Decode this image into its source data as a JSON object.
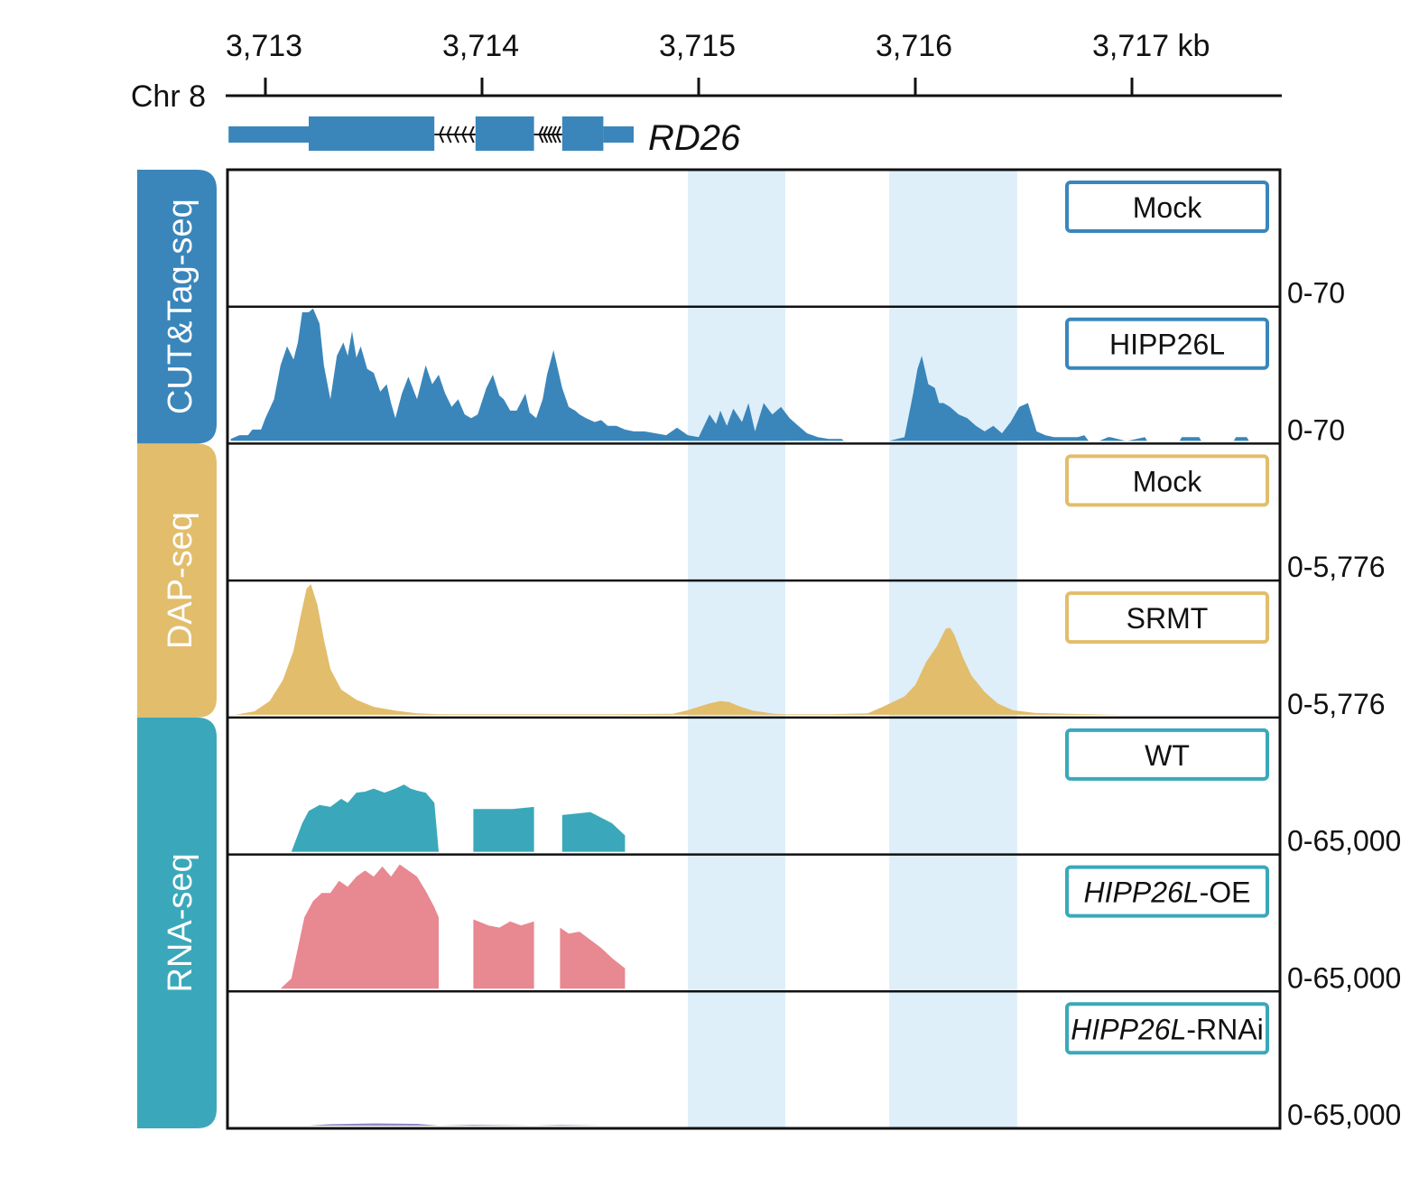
{
  "chart_data": {
    "type": "area",
    "subtype": "genome-browser-tracks",
    "chromosome": "Chr 8",
    "x_unit": "kb",
    "xlim": [
      3712.83,
      3717.7
    ],
    "xticks": [
      3713,
      3714,
      3715,
      3716,
      3717
    ],
    "xtick_labels": [
      "3,713",
      "3,714",
      "3,715",
      "3,716",
      "3,717 kb"
    ],
    "gene": {
      "name": "RD26",
      "strand": "-",
      "start": 3712.83,
      "end": 3714.7,
      "exons": [
        [
          3713.2,
          3713.78
        ],
        [
          3713.97,
          3714.24
        ],
        [
          3714.37,
          3714.56
        ]
      ],
      "utr": [
        [
          3712.83,
          3713.2
        ],
        [
          3714.56,
          3714.7
        ]
      ],
      "introns": [
        [
          3713.78,
          3713.97
        ],
        [
          3714.24,
          3714.37
        ]
      ]
    },
    "highlight_regions": [
      [
        3714.95,
        3715.4
      ],
      [
        3715.88,
        3716.47
      ]
    ],
    "colors": {
      "cut_tag": "#3a86bb",
      "dap": "#e2bd6c",
      "rna": "#3aa8ba",
      "wt": "#3aa8ba",
      "oe": "#e88891",
      "rnai": "#8e87c7",
      "highlight": "#deeffa",
      "gene": "#3a86bb",
      "axis": "#111111"
    },
    "groups": [
      {
        "label": "CUT&Tag-seq",
        "color": "#3a86bb",
        "tracks": [
          0,
          1
        ]
      },
      {
        "label": "DAP-seq",
        "color": "#e2bd6c",
        "tracks": [
          2,
          3
        ]
      },
      {
        "label": "RNA-seq",
        "color": "#3aa8ba",
        "tracks": [
          4,
          5,
          6
        ]
      }
    ],
    "tracks": [
      {
        "label": "Mock",
        "italic_part": "",
        "range": "0-70",
        "ymax": 70,
        "color": "#3a86bb",
        "box_color": "#3a86bb",
        "x": [],
        "y": []
      },
      {
        "label": "HIPP26L",
        "italic_part": "",
        "range": "0-70",
        "ymax": 70,
        "color": "#3a86bb",
        "box_color": "#3a86bb",
        "x": [
          3712.84,
          3712.88,
          3712.92,
          3712.94,
          3712.98,
          3713.0,
          3713.04,
          3713.07,
          3713.1,
          3713.13,
          3713.15,
          3713.17,
          3713.2,
          3713.22,
          3713.25,
          3713.27,
          3713.3,
          3713.33,
          3713.36,
          3713.38,
          3713.4,
          3713.42,
          3713.44,
          3713.47,
          3713.5,
          3713.53,
          3713.56,
          3713.58,
          3713.6,
          3713.63,
          3713.66,
          3713.7,
          3713.74,
          3713.77,
          3713.8,
          3713.83,
          3713.86,
          3713.89,
          3713.92,
          3713.95,
          3713.98,
          3714.02,
          3714.05,
          3714.08,
          3714.1,
          3714.13,
          3714.16,
          3714.2,
          3714.22,
          3714.25,
          3714.28,
          3714.3,
          3714.33,
          3714.37,
          3714.4,
          3714.43,
          3714.45,
          3714.48,
          3714.52,
          3714.55,
          3714.58,
          3714.62,
          3714.66,
          3714.7,
          3714.75,
          3714.8,
          3714.85,
          3714.9,
          3714.95,
          3715.0,
          3715.05,
          3715.08,
          3715.1,
          3715.13,
          3715.16,
          3715.2,
          3715.23,
          3715.26,
          3715.3,
          3715.34,
          3715.38,
          3715.42,
          3715.46,
          3715.5,
          3715.55,
          3715.6,
          3715.66,
          3715.67,
          3715.88,
          3715.95,
          3715.99,
          3716.01,
          3716.03,
          3716.06,
          3716.09,
          3716.11,
          3716.13,
          3716.16,
          3716.2,
          3716.24,
          3716.28,
          3716.32,
          3716.36,
          3716.4,
          3716.44,
          3716.48,
          3716.52,
          3716.56,
          3716.6,
          3716.64,
          3716.68,
          3716.72,
          3716.75,
          3716.78,
          3716.8,
          3716.85,
          3716.89,
          3716.9,
          3716.97,
          3716.98,
          3717.06,
          3717.07,
          3717.22,
          3717.23,
          3717.31,
          3717.32,
          3717.47,
          3717.48,
          3717.53,
          3717.54,
          3717.7
        ],
        "y": [
          1,
          3,
          3,
          6,
          6,
          12,
          22,
          40,
          50,
          43,
          52,
          68,
          68,
          70,
          62,
          40,
          22,
          45,
          52,
          45,
          58,
          44,
          50,
          38,
          36,
          26,
          30,
          20,
          12,
          25,
          34,
          22,
          40,
          30,
          35,
          25,
          18,
          22,
          14,
          12,
          14,
          28,
          35,
          24,
          22,
          16,
          16,
          25,
          15,
          12,
          22,
          35,
          48,
          28,
          18,
          16,
          14,
          12,
          10,
          11,
          8,
          8,
          6,
          5,
          5,
          4,
          3,
          7,
          3,
          2,
          14,
          9,
          16,
          8,
          17,
          10,
          20,
          5,
          20,
          14,
          18,
          12,
          8,
          4,
          2,
          1,
          1,
          0,
          0,
          2,
          25,
          38,
          45,
          30,
          28,
          20,
          20,
          18,
          14,
          12,
          8,
          5,
          8,
          4,
          10,
          18,
          20,
          5,
          3,
          2,
          2,
          2,
          2,
          3,
          0,
          0,
          2,
          2,
          0,
          0,
          2,
          0,
          0,
          2,
          2,
          0,
          0,
          2,
          2,
          0,
          0
        ]
      },
      {
        "label": "Mock",
        "italic_part": "",
        "range": "0-5,776",
        "ymax": 5776,
        "color": "#e2bd6c",
        "box_color": "#e2bd6c",
        "x": [],
        "y": []
      },
      {
        "label": "SRMT",
        "italic_part": "",
        "range": "0-5,776",
        "ymax": 5776,
        "color": "#e2bd6c",
        "box_color": "#e2bd6c",
        "x": [
          3712.86,
          3712.95,
          3713.02,
          3713.08,
          3713.13,
          3713.16,
          3713.19,
          3713.21,
          3713.24,
          3713.27,
          3713.3,
          3713.35,
          3713.42,
          3713.5,
          3713.6,
          3713.7,
          3713.8,
          3714.0,
          3714.3,
          3714.6,
          3714.88,
          3714.95,
          3715.05,
          3715.1,
          3715.14,
          3715.18,
          3715.25,
          3715.35,
          3715.4,
          3715.6,
          3715.78,
          3715.85,
          3715.95,
          3716.0,
          3716.05,
          3716.1,
          3716.14,
          3716.16,
          3716.18,
          3716.22,
          3716.26,
          3716.32,
          3716.38,
          3716.45,
          3716.55,
          3716.7,
          3716.95
        ],
        "y": [
          0,
          150,
          600,
          1500,
          2800,
          4200,
          5500,
          5700,
          4800,
          3300,
          2000,
          1100,
          650,
          350,
          180,
          60,
          30,
          20,
          20,
          20,
          40,
          200,
          500,
          600,
          560,
          400,
          180,
          40,
          20,
          20,
          60,
          350,
          800,
          1300,
          2300,
          3000,
          3750,
          3800,
          3500,
          2500,
          1700,
          1000,
          500,
          200,
          80,
          40,
          0
        ]
      },
      {
        "label": "WT",
        "italic_part": "",
        "range": "0-65,000",
        "ymax": 65000,
        "color": "#3aa8ba",
        "box_color": "#3aa8ba",
        "x": [
          3713.12,
          3713.17,
          3713.2,
          3713.25,
          3713.3,
          3713.35,
          3713.38,
          3713.42,
          3713.46,
          3713.5,
          3713.55,
          3713.6,
          3713.64,
          3713.67,
          3713.7,
          3713.74,
          3713.78,
          3713.8,
          3713.8001,
          3713.9599,
          3713.96,
          3714.14,
          3714.24,
          3714.2401,
          3714.3699,
          3714.37,
          3714.5,
          3714.6,
          3714.66,
          3714.6601
        ],
        "y": [
          0,
          14000,
          20000,
          23000,
          22000,
          26000,
          24000,
          29000,
          29500,
          31000,
          29000,
          31000,
          33000,
          31000,
          30000,
          29000,
          24000,
          0,
          0,
          0,
          21000,
          21000,
          22000,
          0,
          0,
          18000,
          19500,
          14000,
          8000,
          0
        ]
      },
      {
        "label": "-OE",
        "italic_part": "HIPP26L",
        "range": "0-65,000",
        "ymax": 65000,
        "color": "#e88891",
        "box_color": "#3aa8ba",
        "x": [
          3713.07,
          3713.12,
          3713.15,
          3713.18,
          3713.22,
          3713.26,
          3713.3,
          3713.34,
          3713.38,
          3713.42,
          3713.46,
          3713.5,
          3713.54,
          3713.58,
          3713.62,
          3713.66,
          3713.7,
          3713.74,
          3713.78,
          3713.8,
          3713.8001,
          3713.9599,
          3713.96,
          3714.03,
          3714.08,
          3714.13,
          3714.18,
          3714.24,
          3714.2401,
          3714.3599,
          3714.36,
          3714.4,
          3714.45,
          3714.5,
          3714.55,
          3714.6,
          3714.66,
          3714.6601
        ],
        "y": [
          0,
          5000,
          20000,
          35000,
          43000,
          47000,
          47000,
          53000,
          50000,
          55000,
          58000,
          55000,
          60000,
          55000,
          61000,
          58000,
          55000,
          48000,
          40000,
          35000,
          0,
          0,
          34000,
          31000,
          30000,
          33000,
          31000,
          33000,
          0,
          0,
          30000,
          27000,
          28000,
          24000,
          20000,
          15000,
          10000,
          0
        ]
      },
      {
        "label": "-RNAi",
        "italic_part": "HIPP26L",
        "range": "0-65,000",
        "ymax": 65000,
        "color": "#8e87c7",
        "box_color": "#3aa8ba",
        "x": [
          3713.2,
          3713.3,
          3713.5,
          3713.7,
          3713.8,
          3713.96,
          3714.24,
          3714.37,
          3714.56
        ],
        "y": [
          0,
          700,
          1100,
          900,
          0,
          400,
          0,
          300,
          0
        ]
      }
    ]
  }
}
